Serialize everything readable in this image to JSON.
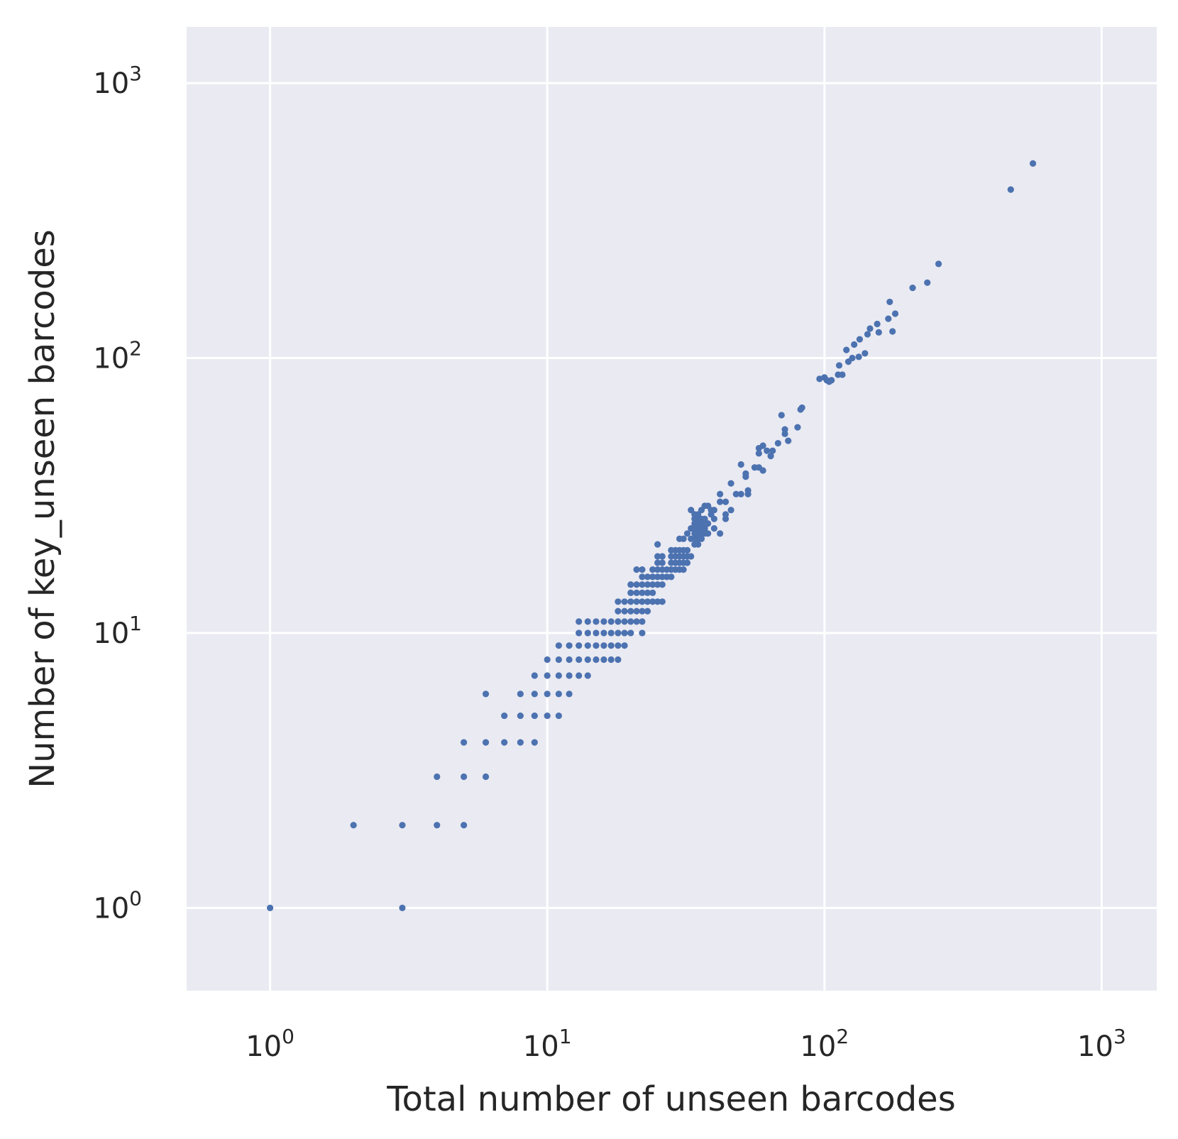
{
  "colors": {
    "plot_background": "#eaeaf2",
    "grid": "#ffffff",
    "point": "#4c72b0",
    "text": "#262626"
  },
  "chart_data": {
    "type": "scatter",
    "xlabel": "Total number of unseen barcodes",
    "ylabel": "Number of key_unseen barcodes",
    "xscale": "log",
    "yscale": "log",
    "xlim": [
      0.5,
      1580
    ],
    "ylim": [
      0.5,
      1600
    ],
    "grid": true,
    "legend": "none",
    "xticks": [
      {
        "value": 1,
        "base": "10",
        "exp": "0"
      },
      {
        "value": 10,
        "base": "10",
        "exp": "1"
      },
      {
        "value": 100,
        "base": "10",
        "exp": "2"
      },
      {
        "value": 1000,
        "base": "10",
        "exp": "3"
      }
    ],
    "yticks": [
      {
        "value": 1,
        "base": "10",
        "exp": "0"
      },
      {
        "value": 10,
        "base": "10",
        "exp": "1"
      },
      {
        "value": 100,
        "base": "10",
        "exp": "2"
      },
      {
        "value": 1000,
        "base": "10",
        "exp": "3"
      }
    ],
    "points": [
      [
        1,
        1
      ],
      [
        2,
        2
      ],
      [
        3,
        2
      ],
      [
        3,
        1
      ],
      [
        4,
        3
      ],
      [
        4,
        2
      ],
      [
        5,
        4
      ],
      [
        5,
        3
      ],
      [
        5,
        2
      ],
      [
        6,
        6
      ],
      [
        6,
        4
      ],
      [
        6,
        3
      ],
      [
        7,
        5
      ],
      [
        7,
        4
      ],
      [
        8,
        6
      ],
      [
        8,
        5
      ],
      [
        8,
        4
      ],
      [
        9,
        7
      ],
      [
        9,
        6
      ],
      [
        9,
        5
      ],
      [
        9,
        4
      ],
      [
        10,
        8
      ],
      [
        10,
        7
      ],
      [
        10,
        6
      ],
      [
        10,
        5
      ],
      [
        11,
        9
      ],
      [
        11,
        8
      ],
      [
        11,
        7
      ],
      [
        11,
        6
      ],
      [
        11,
        5
      ],
      [
        12,
        9
      ],
      [
        12,
        8
      ],
      [
        12,
        7
      ],
      [
        12,
        6
      ],
      [
        13,
        11
      ],
      [
        13,
        10
      ],
      [
        13,
        9
      ],
      [
        13,
        8
      ],
      [
        13,
        7
      ],
      [
        14,
        11
      ],
      [
        14,
        10
      ],
      [
        14,
        9
      ],
      [
        14,
        8
      ],
      [
        14,
        7
      ],
      [
        15,
        11
      ],
      [
        15,
        10
      ],
      [
        15,
        9
      ],
      [
        15,
        8
      ],
      [
        16,
        11
      ],
      [
        16,
        10
      ],
      [
        16,
        9
      ],
      [
        16,
        8
      ],
      [
        17,
        11
      ],
      [
        17,
        10
      ],
      [
        17,
        9
      ],
      [
        17,
        8
      ],
      [
        18,
        13
      ],
      [
        18,
        12
      ],
      [
        18,
        11
      ],
      [
        18,
        10
      ],
      [
        18,
        9
      ],
      [
        18,
        8
      ],
      [
        19,
        13
      ],
      [
        19,
        12
      ],
      [
        19,
        11
      ],
      [
        19,
        10
      ],
      [
        19,
        9
      ],
      [
        20,
        15
      ],
      [
        20,
        14
      ],
      [
        20,
        13
      ],
      [
        20,
        12
      ],
      [
        20,
        11
      ],
      [
        20,
        10
      ],
      [
        21,
        17
      ],
      [
        21,
        15
      ],
      [
        21,
        14
      ],
      [
        21,
        13
      ],
      [
        21,
        12
      ],
      [
        21,
        11
      ],
      [
        22,
        17
      ],
      [
        22,
        16
      ],
      [
        22,
        15
      ],
      [
        22,
        14
      ],
      [
        22,
        13
      ],
      [
        22,
        12
      ],
      [
        22,
        11
      ],
      [
        22,
        10
      ],
      [
        23,
        16
      ],
      [
        23,
        15
      ],
      [
        23,
        14
      ],
      [
        23,
        13
      ],
      [
        23,
        12
      ],
      [
        24,
        17
      ],
      [
        24,
        16
      ],
      [
        24,
        15
      ],
      [
        24,
        14
      ],
      [
        24,
        13
      ],
      [
        25,
        21
      ],
      [
        25,
        19
      ],
      [
        25,
        18
      ],
      [
        25,
        17
      ],
      [
        25,
        16
      ],
      [
        25,
        15
      ],
      [
        25,
        13
      ],
      [
        26,
        19
      ],
      [
        26,
        18
      ],
      [
        26,
        17
      ],
      [
        26,
        16
      ],
      [
        26,
        15
      ],
      [
        26,
        13
      ],
      [
        27,
        17
      ],
      [
        27,
        16
      ],
      [
        28,
        20
      ],
      [
        28,
        19
      ],
      [
        28,
        18
      ],
      [
        28,
        17
      ],
      [
        28,
        16
      ],
      [
        29,
        20
      ],
      [
        29,
        19
      ],
      [
        29,
        18
      ],
      [
        29,
        17
      ],
      [
        30,
        22
      ],
      [
        30,
        20
      ],
      [
        30,
        19
      ],
      [
        30,
        18
      ],
      [
        30,
        17
      ],
      [
        31,
        22
      ],
      [
        31,
        20
      ],
      [
        31,
        19
      ],
      [
        31,
        18
      ],
      [
        31,
        17
      ],
      [
        32,
        23
      ],
      [
        32,
        20
      ],
      [
        32,
        19
      ],
      [
        32,
        18
      ],
      [
        33,
        28
      ],
      [
        33,
        24
      ],
      [
        33,
        22
      ],
      [
        33,
        19
      ],
      [
        34,
        27
      ],
      [
        34,
        26
      ],
      [
        34,
        25
      ],
      [
        34,
        24
      ],
      [
        34,
        23
      ],
      [
        34,
        22
      ],
      [
        34,
        21
      ],
      [
        35,
        27
      ],
      [
        35,
        26
      ],
      [
        35,
        25
      ],
      [
        35,
        24
      ],
      [
        35,
        23
      ],
      [
        35,
        22
      ],
      [
        35,
        21
      ],
      [
        36,
        28
      ],
      [
        36,
        26
      ],
      [
        36,
        25
      ],
      [
        36,
        24
      ],
      [
        36,
        23
      ],
      [
        36,
        22
      ],
      [
        37,
        29
      ],
      [
        37,
        26
      ],
      [
        37,
        25
      ],
      [
        37,
        24
      ],
      [
        37,
        23
      ],
      [
        38,
        29
      ],
      [
        38,
        25
      ],
      [
        38,
        23
      ],
      [
        39,
        28
      ],
      [
        39,
        27
      ],
      [
        40,
        28
      ],
      [
        40,
        26
      ],
      [
        40,
        24
      ],
      [
        42,
        32
      ],
      [
        42,
        30
      ],
      [
        42,
        23
      ],
      [
        44,
        30
      ],
      [
        44,
        27
      ],
      [
        44,
        26
      ],
      [
        46,
        35
      ],
      [
        46,
        28
      ],
      [
        48,
        32
      ],
      [
        50,
        41
      ],
      [
        50,
        32
      ],
      [
        52,
        38
      ],
      [
        52,
        37
      ],
      [
        53,
        33
      ],
      [
        53,
        32
      ],
      [
        56,
        40
      ],
      [
        58,
        47
      ],
      [
        58,
        45
      ],
      [
        58,
        40
      ],
      [
        60,
        48
      ],
      [
        60,
        39
      ],
      [
        62,
        46
      ],
      [
        64,
        44
      ],
      [
        65,
        46
      ],
      [
        68,
        49
      ],
      [
        70,
        62
      ],
      [
        72,
        55
      ],
      [
        72,
        53
      ],
      [
        74,
        50
      ],
      [
        80,
        56
      ],
      [
        82,
        65
      ],
      [
        83,
        66
      ],
      [
        96,
        84
      ],
      [
        100,
        85
      ],
      [
        102,
        83
      ],
      [
        104,
        82
      ],
      [
        106,
        83
      ],
      [
        112,
        87
      ],
      [
        113,
        94
      ],
      [
        116,
        87
      ],
      [
        120,
        107
      ],
      [
        122,
        97
      ],
      [
        126,
        100
      ],
      [
        128,
        112
      ],
      [
        133,
        101
      ],
      [
        134,
        117
      ],
      [
        140,
        104
      ],
      [
        143,
        122
      ],
      [
        146,
        128
      ],
      [
        155,
        133
      ],
      [
        157,
        124
      ],
      [
        170,
        139
      ],
      [
        172,
        160
      ],
      [
        176,
        125
      ],
      [
        180,
        145
      ],
      [
        208,
        180
      ],
      [
        235,
        188
      ],
      [
        258,
        220
      ],
      [
        470,
        410
      ],
      [
        565,
        510
      ]
    ]
  }
}
